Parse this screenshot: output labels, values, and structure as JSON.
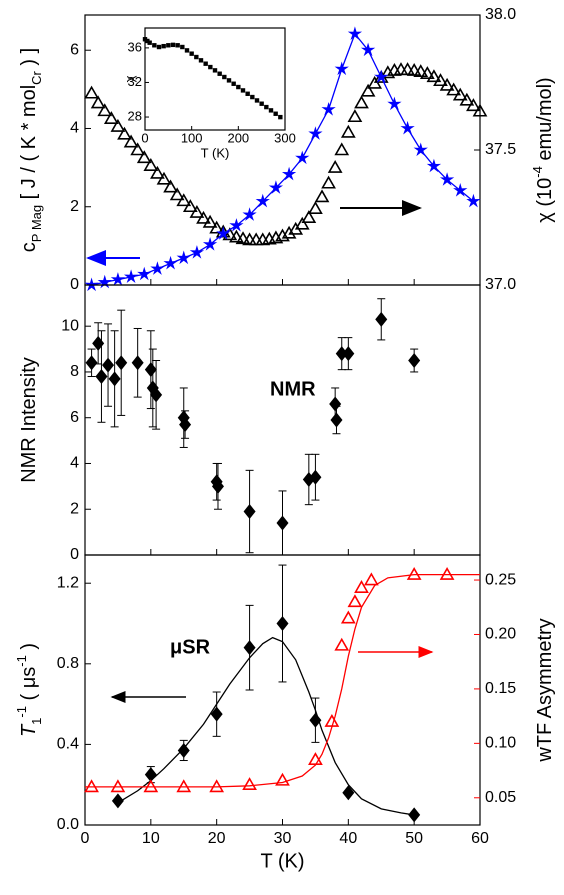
{
  "chart_data": [
    {
      "type": "scatter",
      "xlim": [
        0,
        60
      ],
      "xticks": [
        0,
        10,
        20,
        30,
        40,
        50,
        60
      ],
      "ylim": [
        0,
        6.9
      ],
      "yticks": [
        0,
        2,
        4,
        6
      ],
      "y2lim": [
        37.0,
        38.0
      ],
      "y2ticks": [
        {
          "value": 37,
          "label": "37.0"
        },
        {
          "value": 37.5,
          "label": "37.5"
        },
        {
          "value": 38,
          "label": "38.0"
        }
      ],
      "y_label": [
        "c",
        "P Mag",
        " [ J / ( K * mol",
        "Cr",
        " ) ]"
      ],
      "y2_label": [
        "χ (10",
        "-4",
        " emu/mol)"
      ],
      "series": [
        {
          "color": "#000000",
          "marker": "triangle",
          "x": [
            1,
            2,
            3,
            4,
            5,
            6,
            7,
            8,
            9,
            10,
            11,
            12,
            13,
            14,
            15,
            16,
            17,
            18,
            19,
            20,
            21,
            22,
            23,
            24,
            25,
            26,
            27,
            28,
            29,
            30,
            31,
            32,
            33,
            34,
            35,
            36,
            37,
            38,
            39,
            40,
            41,
            42,
            43,
            44,
            45,
            46,
            47,
            48,
            49,
            50,
            51,
            52,
            53,
            54,
            55,
            56,
            57,
            58,
            59,
            60
          ],
          "values": [
            4.9,
            4.65,
            4.45,
            4.25,
            4.05,
            3.85,
            3.65,
            3.45,
            3.25,
            3.05,
            2.85,
            2.7,
            2.5,
            2.3,
            2.15,
            2.0,
            1.85,
            1.7,
            1.6,
            1.45,
            1.35,
            1.28,
            1.22,
            1.18,
            1.15,
            1.15,
            1.15,
            1.17,
            1.2,
            1.25,
            1.32,
            1.42,
            1.55,
            1.72,
            1.95,
            2.25,
            2.6,
            3.0,
            3.45,
            3.9,
            4.3,
            4.65,
            4.95,
            5.15,
            5.3,
            5.42,
            5.48,
            5.5,
            5.5,
            5.48,
            5.45,
            5.4,
            5.32,
            5.22,
            5.1,
            4.98,
            4.85,
            4.72,
            4.58,
            4.44
          ]
        },
        {
          "color": "#0000ff",
          "marker": "star",
          "line": true,
          "axis": "y2",
          "x": [
            1,
            3,
            5,
            7,
            9,
            11,
            13,
            15,
            17,
            19,
            21,
            23,
            25,
            27,
            29,
            31,
            33,
            35,
            37,
            39,
            41,
            43,
            45,
            47,
            49,
            51,
            53,
            55,
            57,
            59
          ],
          "values": [
            37.0,
            37.01,
            37.02,
            37.03,
            37.04,
            37.06,
            37.08,
            37.1,
            37.12,
            37.15,
            37.19,
            37.22,
            37.26,
            37.31,
            37.36,
            37.41,
            37.47,
            37.56,
            37.65,
            37.8,
            37.93,
            37.87,
            37.77,
            37.67,
            37.58,
            37.5,
            37.44,
            37.39,
            37.35,
            37.31
          ]
        }
      ]
    },
    {
      "type": "scatter",
      "xlim": [
        0,
        60
      ],
      "xticks": [
        0,
        10,
        20,
        30,
        40,
        50,
        60
      ],
      "ylim": [
        0,
        11.8
      ],
      "yticks": [
        0,
        2,
        4,
        6,
        8,
        10
      ],
      "y_label": [
        "NMR Intensity"
      ],
      "annotation": "NMR",
      "series": [
        {
          "color": "#000000",
          "marker": "diamond",
          "x": [
            1,
            2,
            2.5,
            3.5,
            4.5,
            5.5,
            8,
            10,
            10.3,
            10.8,
            15,
            15.2,
            20,
            20.2,
            25,
            30,
            34,
            35,
            38,
            38.2,
            39,
            40,
            45,
            50
          ],
          "values": [
            8.4,
            9.25,
            7.8,
            8.3,
            7.7,
            8.4,
            8.4,
            8.1,
            7.3,
            7.0,
            6.0,
            5.7,
            3.2,
            3.0,
            1.9,
            1.4,
            3.3,
            3.4,
            6.6,
            5.9,
            8.8,
            8.8,
            10.3,
            8.5
          ],
          "errors": [
            0.6,
            0.9,
            2.0,
            1.8,
            2.1,
            2.3,
            1.5,
            1.7,
            1.7,
            1.5,
            1.3,
            0.6,
            0.8,
            1.0,
            1.8,
            1.4,
            1.1,
            1.0,
            0.7,
            0.6,
            0.7,
            0.7,
            0.9,
            0.5
          ]
        }
      ]
    },
    {
      "type": "scatter",
      "xlim": [
        0,
        60
      ],
      "xticks": [
        0,
        10,
        20,
        30,
        40,
        50,
        60
      ],
      "x_label": "T (K)",
      "ylim": [
        0,
        1.34
      ],
      "yticks": [
        {
          "value": 0,
          "label": "0.0"
        },
        {
          "value": 0.4,
          "label": "0.4"
        },
        {
          "value": 0.8,
          "label": "0.8"
        },
        {
          "value": 1.2,
          "label": "1.2"
        }
      ],
      "y2lim": [
        0.025,
        0.273
      ],
      "y2ticks": [
        0.05,
        {
          "value": 0.1,
          "label": "0.10"
        },
        0.15,
        {
          "value": 0.2,
          "label": "0.20"
        },
        0.25
      ],
      "y_label": [
        "T",
        "1",
        "-1",
        " ( μs",
        "-1",
        " )"
      ],
      "y2_label": [
        "wTF Asymmetry"
      ],
      "y2_color": "#ff0000",
      "annotation": "μSR",
      "series": [
        {
          "color": "#000000",
          "line": true,
          "x": [
            5,
            8,
            10,
            12,
            15,
            18,
            20,
            22,
            25,
            27,
            28.5,
            30,
            32,
            34,
            35,
            36,
            38,
            40,
            42,
            45,
            48,
            50
          ],
          "values": [
            0.11,
            0.17,
            0.22,
            0.28,
            0.38,
            0.5,
            0.6,
            0.7,
            0.83,
            0.9,
            0.93,
            0.91,
            0.82,
            0.66,
            0.57,
            0.47,
            0.31,
            0.2,
            0.13,
            0.08,
            0.06,
            0.05
          ]
        },
        {
          "color": "#000000",
          "marker": "diamond",
          "x": [
            5,
            10,
            15,
            20,
            25,
            30,
            35,
            40,
            50
          ],
          "values": [
            0.12,
            0.25,
            0.37,
            0.55,
            0.88,
            1.0,
            0.52,
            0.16,
            0.05
          ],
          "errors": [
            null,
            0.04,
            0.05,
            0.11,
            0.21,
            0.29,
            0.11,
            null,
            null
          ]
        },
        {
          "color": "#ff0000",
          "line": true,
          "axis": "y2",
          "x": [
            0,
            10,
            20,
            25,
            30,
            33,
            35,
            36,
            37,
            38,
            39,
            40,
            41,
            42,
            44,
            46,
            50,
            55,
            60
          ],
          "values": [
            0.06,
            0.06,
            0.06,
            0.061,
            0.064,
            0.07,
            0.08,
            0.09,
            0.105,
            0.125,
            0.15,
            0.18,
            0.205,
            0.225,
            0.245,
            0.252,
            0.255,
            0.255,
            0.255
          ]
        },
        {
          "color": "#ff0000",
          "marker": "triangle",
          "axis": "y2",
          "x": [
            1,
            5,
            10,
            15,
            20,
            25,
            30,
            35,
            37.5,
            39,
            40,
            41,
            42,
            43.5,
            50,
            55
          ],
          "values": [
            0.06,
            0.06,
            0.06,
            0.06,
            0.06,
            0.062,
            0.066,
            0.085,
            0.12,
            0.19,
            0.215,
            0.23,
            0.243,
            0.25,
            0.255,
            0.255
          ]
        }
      ]
    },
    {
      "type": "scatter",
      "xlim": [
        0,
        300
      ],
      "xticks": [
        0,
        100,
        200,
        300
      ],
      "x_label": "T (K)",
      "ylim": [
        26.5,
        38.3
      ],
      "yticks": [
        28,
        32,
        36
      ],
      "y_label": [
        "χ"
      ],
      "series": [
        {
          "color": "#000000",
          "marker": "square",
          "x": [
            0,
            5,
            10,
            20,
            30,
            40,
            50,
            60,
            70,
            80,
            90,
            100,
            110,
            120,
            130,
            140,
            150,
            160,
            170,
            180,
            190,
            200,
            210,
            220,
            230,
            240,
            250,
            260,
            270,
            280,
            290
          ],
          "values": [
            37.0,
            36.8,
            36.6,
            36.3,
            36.1,
            36.2,
            36.3,
            36.35,
            36.3,
            36.1,
            35.71,
            35.33,
            34.94,
            34.56,
            34.17,
            33.78,
            33.4,
            33.01,
            32.63,
            32.24,
            31.85,
            31.47,
            31.08,
            30.69,
            30.31,
            29.92,
            29.54,
            29.15,
            28.77,
            28.38,
            27.99
          ]
        }
      ]
    }
  ]
}
